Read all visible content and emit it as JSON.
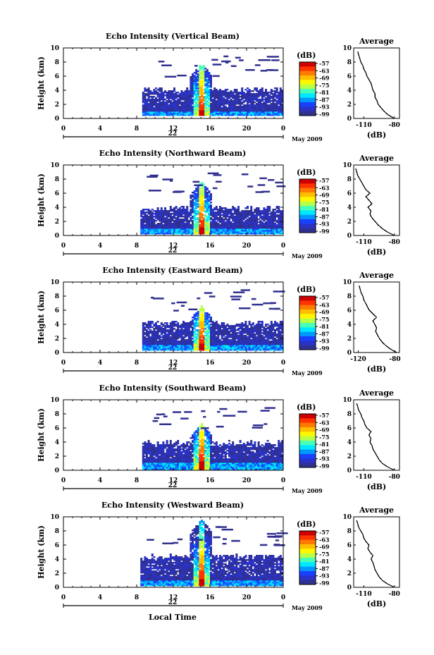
{
  "figure": {
    "x_axis_title": "Local Time",
    "date_label": "May 2009",
    "colorbar_title": "(dB)",
    "colorbar_ticks": [
      "-57",
      "-63",
      "-69",
      "-75",
      "-81",
      "-87",
      "-93",
      "-99"
    ],
    "colorbar_colors": [
      "#cc0000",
      "#ff3300",
      "#ff7a00",
      "#ffbf00",
      "#fff700",
      "#b8ff48",
      "#48ffb8",
      "#00e8ff",
      "#0098ff",
      "#1a40ff",
      "#2a33c8",
      "#303090"
    ],
    "profile_title": "Average",
    "profile_xlabel": "(dB)",
    "profile_xticks": [
      "-110",
      "-80"
    ],
    "profile_xticks_alt": [
      "-120",
      "-80"
    ],
    "height_label": "Height (km)"
  },
  "chart_data": [
    {
      "type": "heatmap",
      "title": "Echo Intensity (Vertical Beam)",
      "xlabel": "",
      "ylabel": "Height (km)",
      "x_ticks": [
        "0",
        "4",
        "8",
        "12",
        "16",
        "20",
        "0"
      ],
      "y_ticks": [
        "0",
        "2",
        "4",
        "6",
        "8",
        "10"
      ],
      "xlim": [
        0,
        24
      ],
      "ylim": [
        0,
        10
      ],
      "day_label": "22",
      "colorbar_range_db": [
        -99,
        -57
      ],
      "features": {
        "data_start_hour": 8.6,
        "layer_top_km": 4.0,
        "layer_bottom_km": 0.4,
        "convective_peak_hour": 15.0,
        "convective_top_km": 7.8
      },
      "profile": {
        "title": "Average",
        "xlabel": "(dB)",
        "xticks": [
          "-110",
          "-80"
        ],
        "xlim": [
          -120,
          -75
        ],
        "x": [
          -80,
          -86,
          -90,
          -93,
          -96,
          -97,
          -99,
          -99,
          -101,
          -102,
          -103,
          -105,
          -107,
          -108,
          -110,
          -111,
          -113,
          -114,
          -115,
          -116
        ],
        "y": [
          0,
          0.5,
          1,
          1.5,
          2,
          2.5,
          3,
          3.5,
          4,
          4.5,
          5,
          5.5,
          6,
          6.5,
          7,
          7.5,
          8,
          8.5,
          9,
          9.5
        ]
      }
    },
    {
      "type": "heatmap",
      "title": "Echo Intensity (Northward Beam)",
      "xlabel": "",
      "ylabel": "Height (km)",
      "x_ticks": [
        "0",
        "4",
        "8",
        "12",
        "16",
        "20",
        "0"
      ],
      "y_ticks": [
        "0",
        "2",
        "4",
        "6",
        "8",
        "10"
      ],
      "xlim": [
        0,
        24
      ],
      "ylim": [
        0,
        10
      ],
      "day_label": "22",
      "colorbar_range_db": [
        -99,
        -57
      ],
      "features": {
        "data_start_hour": 8.4,
        "layer_top_km": 3.8,
        "layer_bottom_km": 0.2,
        "convective_peak_hour": 15.0,
        "convective_top_km": 7.6
      },
      "profile": {
        "title": "Average",
        "xlabel": "(dB)",
        "xticks": [
          "-110",
          "-80"
        ],
        "xlim": [
          -120,
          -75
        ],
        "x": [
          -80,
          -87,
          -92,
          -96,
          -99,
          -102,
          -104,
          -103,
          -106,
          -102,
          -105,
          -108,
          -104,
          -108,
          -110,
          -112,
          -114,
          -116,
          -117,
          -118
        ],
        "y": [
          0,
          0.5,
          1,
          1.5,
          2,
          2.5,
          3,
          3.5,
          4,
          4.5,
          5,
          5.5,
          6,
          6.5,
          7,
          7.5,
          8,
          8.5,
          9,
          9.5
        ]
      }
    },
    {
      "type": "heatmap",
      "title": "Echo Intensity (Eastward Beam)",
      "xlabel": "",
      "ylabel": "Height (km)",
      "x_ticks": [
        "0",
        "4",
        "8",
        "12",
        "16",
        "20",
        "0"
      ],
      "y_ticks": [
        "0",
        "2",
        "4",
        "6",
        "8",
        "10"
      ],
      "xlim": [
        0,
        24
      ],
      "ylim": [
        0,
        10
      ],
      "day_label": "22",
      "colorbar_range_db": [
        -99,
        -57
      ],
      "features": {
        "data_start_hour": 8.6,
        "layer_top_km": 4.1,
        "layer_bottom_km": 0.3,
        "convective_peak_hour": 15.0,
        "convective_top_km": 6.6
      },
      "profile": {
        "title": "Average",
        "xlabel": "(dB)",
        "xticks": [
          "-120",
          "-80"
        ],
        "xlim": [
          -125,
          -75
        ],
        "x": [
          -78,
          -85,
          -90,
          -94,
          -97,
          -99,
          -101,
          -100,
          -102,
          -104,
          -100,
          -104,
          -108,
          -110,
          -112,
          -114,
          -115,
          -117,
          -118,
          -119
        ],
        "y": [
          0,
          0.5,
          1,
          1.5,
          2,
          2.5,
          3,
          3.5,
          4,
          4.5,
          5,
          5.5,
          6,
          6.5,
          7,
          7.5,
          8,
          8.5,
          9,
          9.5
        ]
      }
    },
    {
      "type": "heatmap",
      "title": "Echo Intensity (Southward Beam)",
      "xlabel": "",
      "ylabel": "Height (km)",
      "x_ticks": [
        "0",
        "4",
        "8",
        "12",
        "16",
        "20",
        "0"
      ],
      "y_ticks": [
        "0",
        "2",
        "4",
        "6",
        "8",
        "10"
      ],
      "xlim": [
        0,
        24
      ],
      "ylim": [
        0,
        10
      ],
      "day_label": "22",
      "colorbar_range_db": [
        -99,
        -57
      ],
      "features": {
        "data_start_hour": 8.6,
        "layer_top_km": 3.8,
        "layer_bottom_km": 0.1,
        "convective_peak_hour": 15.0,
        "convective_top_km": 6.6
      },
      "profile": {
        "title": "Average",
        "xlabel": "(dB)",
        "xticks": [
          "-110",
          "-80"
        ],
        "xlim": [
          -120,
          -75
        ],
        "x": [
          -80,
          -87,
          -92,
          -95,
          -97,
          -99,
          -101,
          -102,
          -104,
          -103,
          -105,
          -103,
          -107,
          -109,
          -110,
          -112,
          -113,
          -115,
          -116,
          -117
        ],
        "y": [
          0,
          0.5,
          1,
          1.5,
          2,
          2.5,
          3,
          3.5,
          4,
          4.5,
          5,
          5.5,
          6,
          6.5,
          7,
          7.5,
          8,
          8.5,
          9,
          9.5
        ]
      }
    },
    {
      "type": "heatmap",
      "title": "Echo Intensity (Westward Beam)",
      "xlabel": "Local Time",
      "ylabel": "Height (km)",
      "x_ticks": [
        "0",
        "4",
        "8",
        "12",
        "16",
        "20",
        "0"
      ],
      "y_ticks": [
        "0",
        "2",
        "4",
        "6",
        "8",
        "10"
      ],
      "xlim": [
        0,
        24
      ],
      "ylim": [
        0,
        10
      ],
      "day_label": "22",
      "colorbar_range_db": [
        -99,
        -57
      ],
      "features": {
        "data_start_hour": 8.4,
        "layer_top_km": 4.3,
        "layer_bottom_km": 0.2,
        "convective_peak_hour": 15.0,
        "convective_top_km": 9.6
      },
      "profile": {
        "title": "Average",
        "xlabel": "(dB)",
        "xticks": [
          "-110",
          "-80"
        ],
        "xlim": [
          -120,
          -75
        ],
        "x": [
          -80,
          -87,
          -92,
          -95,
          -97,
          -99,
          -100,
          -101,
          -103,
          -101,
          -104,
          -106,
          -105,
          -108,
          -110,
          -111,
          -113,
          -115,
          -116,
          -117
        ],
        "y": [
          0,
          0.5,
          1,
          1.5,
          2,
          2.5,
          3,
          3.5,
          4,
          4.5,
          5,
          5.5,
          6,
          6.5,
          7,
          7.5,
          8,
          8.5,
          9,
          9.5
        ]
      }
    }
  ]
}
